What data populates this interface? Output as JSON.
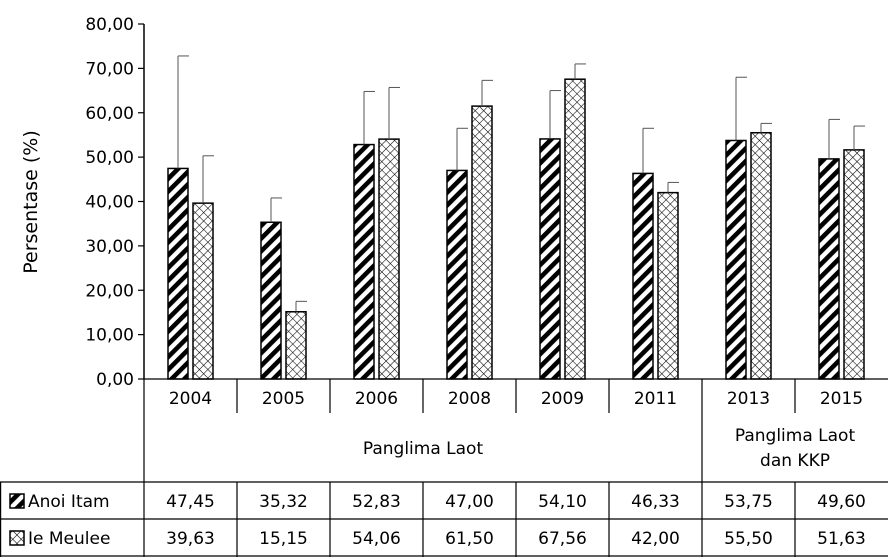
{
  "chart_data": {
    "type": "bar",
    "ylabel": "Persentase (%)",
    "ylim": [
      0,
      80
    ],
    "yticks": [
      "0,00",
      "10,00",
      "20,00",
      "30,00",
      "40,00",
      "50,00",
      "60,00",
      "70,00",
      "80,00"
    ],
    "categories": [
      "2004",
      "2005",
      "2006",
      "2008",
      "2009",
      "2011",
      "2013",
      "2015"
    ],
    "groups": [
      {
        "label": "Panglima Laot",
        "span": [
          0,
          5
        ]
      },
      {
        "label_lines": [
          "Panglima Laot",
          "dan KKP"
        ],
        "span": [
          6,
          7
        ]
      }
    ],
    "series": [
      {
        "name": "Anoi Itam",
        "pattern": "diagonal-stripes",
        "values": [
          47.45,
          35.32,
          52.83,
          47.0,
          54.1,
          46.33,
          53.75,
          49.6
        ],
        "display": [
          "47,45",
          "35,32",
          "52,83",
          "47,00",
          "54,10",
          "46,33",
          "53,75",
          "49,60"
        ],
        "error_upper": [
          72.8,
          40.8,
          64.8,
          56.5,
          65.0,
          56.5,
          68.0,
          58.5
        ]
      },
      {
        "name": "Ie Meulee",
        "pattern": "crosshatch",
        "values": [
          39.63,
          15.15,
          54.06,
          61.5,
          67.56,
          42.0,
          55.5,
          51.63
        ],
        "display": [
          "39,63",
          "15,15",
          "54,06",
          "61,50",
          "67,56",
          "42,00",
          "55,50",
          "51,63"
        ],
        "error_upper": [
          50.3,
          17.5,
          65.7,
          67.3,
          71.0,
          44.3,
          57.6,
          57.0
        ]
      }
    ],
    "grid": false,
    "legend": "data-table"
  }
}
